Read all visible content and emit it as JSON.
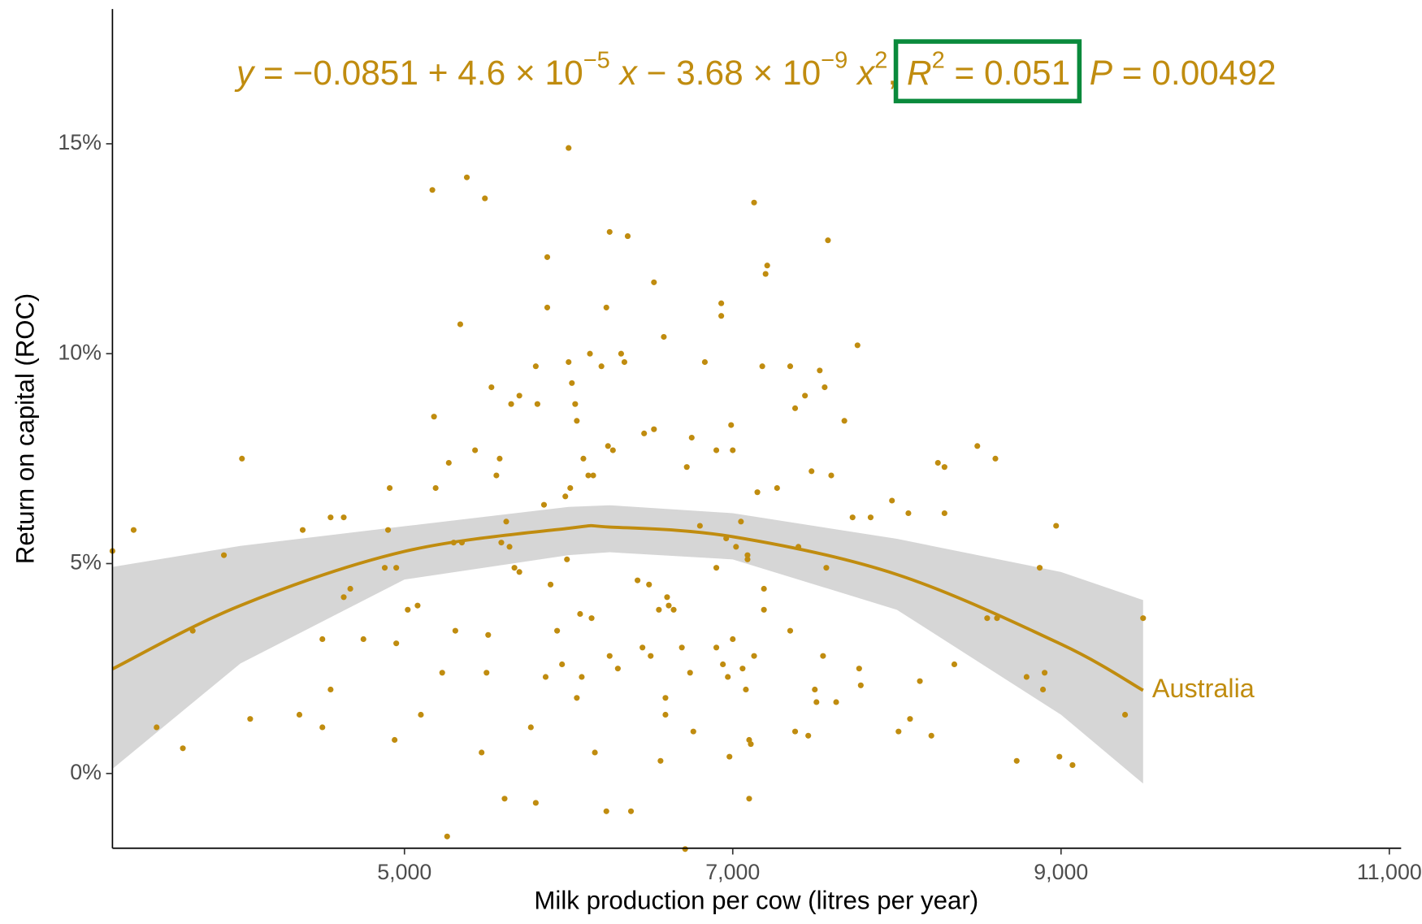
{
  "chart_data": {
    "type": "scatter",
    "annotation": [
      {
        "text": "y",
        "italic": true
      },
      {
        "text": " = −0.0851 + 4.6 × 10"
      },
      {
        "text": "−5",
        "sup": true
      },
      {
        "text": " x",
        "italic": true
      },
      {
        "text": " − 3.68 × 10"
      },
      {
        "text": "−9",
        "sup": true
      },
      {
        "text": " x",
        "italic": true
      },
      {
        "text": "2",
        "sup": true
      },
      {
        "text": ", "
      },
      {
        "text": "R",
        "italic": true
      },
      {
        "text": "2",
        "sup": true
      },
      {
        "text": " = 0.051"
      },
      {
        "text": "  P",
        "italic": true
      },
      {
        "text": " = 0.00492"
      }
    ],
    "highlight_color": "#0a8a3c",
    "x_label": "Milk production per cow (litres per year)",
    "y_label": "Return on capital (ROC)",
    "xlim": [
      3221,
      11072
    ],
    "ylim": [
      -1.78,
      18.21
    ],
    "xticks": [
      {
        "value": 5000,
        "label": "5,000"
      },
      {
        "value": 7000,
        "label": "7,000"
      },
      {
        "value": 9000,
        "label": "9,000"
      },
      {
        "value": 11000,
        "label": "11,000"
      }
    ],
    "yticks": [
      {
        "value": 0,
        "label": "0%"
      },
      {
        "value": 5,
        "label": "5%"
      },
      {
        "value": 10,
        "label": "10%"
      },
      {
        "value": 15,
        "label": "15%"
      }
    ],
    "grid": false,
    "series": [
      {
        "name": "Australia",
        "color": "#c08c0f",
        "x": [
          3221,
          3350,
          3490,
          3650,
          3710,
          3900,
          4010,
          4060,
          4360,
          4380,
          4500,
          4500,
          4550,
          4550,
          4630,
          4630,
          4670,
          4750,
          4880,
          4900,
          4910,
          4940,
          4950,
          4950,
          5020,
          5080,
          5100,
          5170,
          5180,
          5190,
          5230,
          5260,
          5270,
          5300,
          5310,
          5340,
          5380,
          5350,
          5430,
          5470,
          5490,
          5500,
          5510,
          5530,
          5560,
          5580,
          5590,
          5610,
          5620,
          5640,
          5650,
          5670,
          5700,
          5700,
          5770,
          5800,
          5800,
          5810,
          5850,
          5860,
          5870,
          5870,
          5890,
          5930,
          5960,
          5980,
          5990,
          6000,
          6000,
          6010,
          6020,
          6040,
          6050,
          6050,
          6070,
          6090,
          6080,
          6120,
          6130,
          6140,
          6150,
          6160,
          6200,
          6230,
          6230,
          6240,
          6250,
          6250,
          6270,
          6300,
          6320,
          6340,
          6360,
          6380,
          6420,
          6450,
          6460,
          6490,
          6500,
          6520,
          6520,
          6550,
          6560,
          6580,
          6590,
          6590,
          6600,
          6610,
          6640,
          6690,
          6710,
          6720,
          6740,
          6750,
          6760,
          6800,
          6830,
          6900,
          6900,
          6900,
          6930,
          6930,
          6940,
          6960,
          6970,
          6980,
          6990,
          7000,
          7000,
          7020,
          7050,
          7060,
          7080,
          7090,
          7090,
          7100,
          7100,
          7110,
          7130,
          7130,
          7150,
          7180,
          7190,
          7190,
          7200,
          7210,
          7270,
          7350,
          7350,
          7380,
          7380,
          7400,
          7440,
          7460,
          7480,
          7500,
          7510,
          7530,
          7550,
          7560,
          7570,
          7580,
          7600,
          7630,
          7680,
          7730,
          7760,
          7770,
          7780,
          7840,
          7970,
          8010,
          8070,
          8080,
          8140,
          8210,
          8250,
          8290,
          8290,
          8350,
          8490,
          8550,
          8600,
          8610,
          8730,
          8790,
          8870,
          8890,
          8900,
          8970,
          8990,
          9070,
          9390,
          9500
        ],
        "values": [
          5.3,
          5.8,
          1.1,
          0.6,
          3.4,
          5.2,
          7.5,
          1.3,
          1.4,
          5.8,
          3.2,
          1.1,
          6.1,
          2.0,
          6.1,
          4.2,
          4.4,
          3.2,
          4.9,
          5.8,
          6.8,
          0.8,
          4.9,
          3.1,
          3.9,
          4.0,
          1.4,
          13.9,
          8.5,
          6.8,
          2.4,
          -1.5,
          7.4,
          5.5,
          3.4,
          10.7,
          14.2,
          5.5,
          7.7,
          0.5,
          13.7,
          2.4,
          3.3,
          9.2,
          7.1,
          7.5,
          5.5,
          -0.6,
          6.0,
          5.4,
          8.8,
          4.9,
          4.8,
          9.0,
          1.1,
          9.7,
          -0.7,
          8.8,
          6.4,
          2.3,
          12.3,
          11.1,
          4.5,
          3.4,
          2.6,
          6.6,
          5.1,
          14.9,
          9.8,
          6.8,
          9.3,
          8.8,
          8.4,
          1.8,
          3.8,
          7.5,
          2.3,
          7.1,
          10.0,
          3.7,
          7.1,
          0.5,
          9.7,
          11.1,
          -0.9,
          7.8,
          12.9,
          2.8,
          7.7,
          2.5,
          10.0,
          9.8,
          12.8,
          -0.9,
          4.6,
          3.0,
          8.1,
          4.5,
          2.8,
          8.2,
          11.7,
          3.9,
          0.3,
          10.4,
          1.4,
          1.8,
          4.2,
          4.0,
          3.9,
          3.0,
          -1.8,
          7.3,
          2.4,
          8.0,
          1.0,
          5.9,
          9.8,
          4.9,
          7.7,
          3.0,
          11.2,
          10.9,
          2.6,
          5.6,
          2.3,
          0.4,
          8.3,
          3.2,
          7.7,
          5.4,
          6.0,
          2.5,
          2.0,
          5.2,
          5.1,
          0.8,
          -0.6,
          0.7,
          13.6,
          2.8,
          6.7,
          9.7,
          4.4,
          3.9,
          11.9,
          12.1,
          6.8,
          3.4,
          9.7,
          8.7,
          1.0,
          5.4,
          9.0,
          0.9,
          7.2,
          2.0,
          1.7,
          9.6,
          2.8,
          9.2,
          4.9,
          12.7,
          7.1,
          1.7,
          8.4,
          6.1,
          10.2,
          2.5,
          2.1,
          6.1,
          6.5,
          1.0,
          6.2,
          1.3,
          2.2,
          0.9,
          7.4,
          7.3,
          6.2,
          2.6,
          7.8,
          3.7,
          7.5,
          3.7,
          0.3,
          2.3,
          4.9,
          2.0,
          2.4,
          5.9,
          0.4,
          0.2,
          1.4,
          3.7
        ]
      }
    ],
    "fit": {
      "color": "#c08c0f",
      "band_color": "#d6d6d6",
      "x": [
        3221,
        4000,
        5000,
        6000,
        6250,
        7000,
        8000,
        9000,
        9500
      ],
      "values": [
        2.49,
        4.0,
        5.29,
        5.84,
        5.87,
        5.64,
        4.74,
        3.08,
        1.98
      ],
      "lower": [
        0.11,
        2.62,
        4.62,
        5.2,
        5.27,
        5.1,
        3.9,
        1.4,
        -0.24
      ],
      "upper": [
        4.92,
        5.42,
        5.89,
        6.35,
        6.39,
        6.2,
        5.59,
        4.8,
        4.13
      ]
    }
  }
}
